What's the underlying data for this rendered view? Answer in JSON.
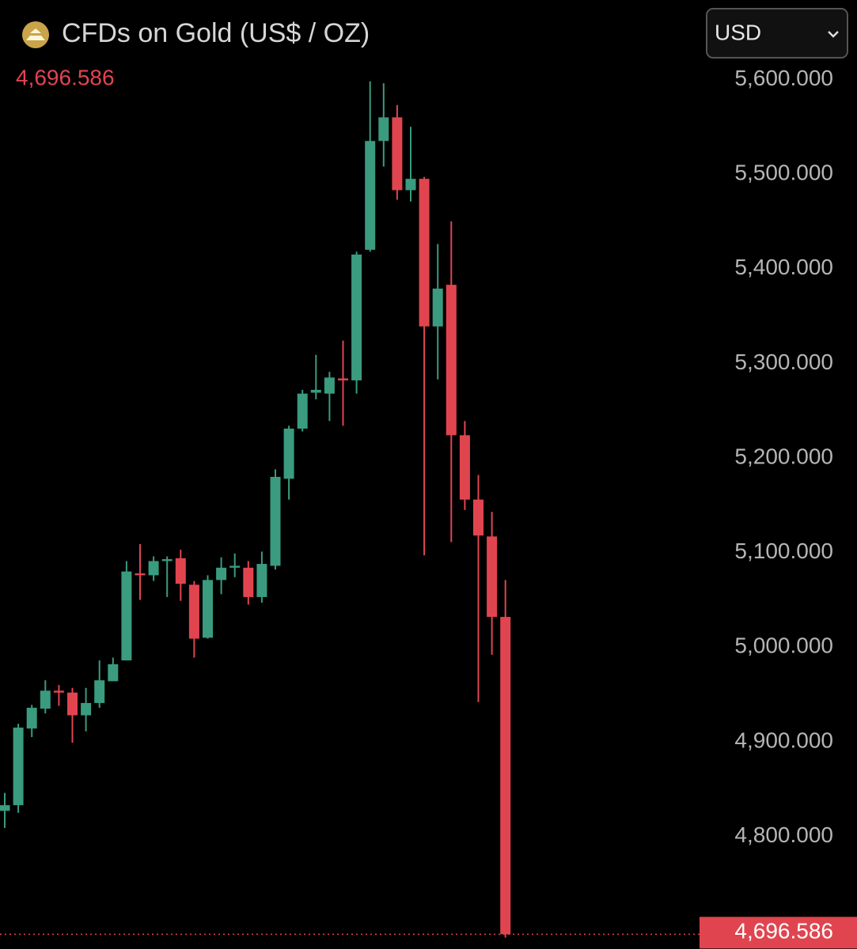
{
  "chart_data": {
    "type": "candlestick",
    "title": "CFDs on Gold (US$ / OZ)",
    "currency": "USD",
    "current_price": {
      "value": 4696.586,
      "label": "4,696.586"
    },
    "up_color": "#3a9b7f",
    "down_color": "#e0454f",
    "ylim": [
      4681,
      5684
    ],
    "yticks": [
      {
        "value": 4800,
        "label": "4,800.000"
      },
      {
        "value": 4900,
        "label": "4,900.000"
      },
      {
        "value": 5000,
        "label": "5,000.000"
      },
      {
        "value": 5100,
        "label": "5,100.000"
      },
      {
        "value": 5200,
        "label": "5,200.000"
      },
      {
        "value": 5300,
        "label": "5,300.000"
      },
      {
        "value": 5400,
        "label": "5,400.000"
      },
      {
        "value": 5500,
        "label": "5,500.000"
      },
      {
        "value": 5600,
        "label": "5,600.000"
      }
    ],
    "open": [
      4827,
      4833,
      4914,
      4935,
      4954,
      4952,
      4928,
      4941,
      4964,
      4986,
      5078,
      5076,
      5091,
      5094,
      5066,
      5010,
      5071,
      5084,
      5084,
      5053,
      5086,
      5178,
      5231,
      5269,
      5268,
      5284,
      5282,
      5420,
      5535,
      5560,
      5483,
      5495,
      5339,
      5383,
      5224,
      5156,
      5117,
      5032
    ],
    "high": [
      4846,
      4919,
      4939,
      4965,
      4960,
      4957,
      4957,
      4986,
      4989,
      5091,
      5109,
      5096,
      5096,
      5103,
      5070,
      5076,
      5095,
      5099,
      5091,
      5101,
      5188,
      5234,
      5272,
      5309,
      5291,
      5324,
      5418,
      5598,
      5596,
      5573,
      5550,
      5497,
      5426,
      5450,
      5239,
      5182,
      5143,
      5071
    ],
    "low": [
      4809,
      4825,
      4905,
      4930,
      4938,
      4899,
      4911,
      4936,
      4964,
      4986,
      5050,
      5070,
      5053,
      5049,
      4989,
      5009,
      5056,
      5074,
      5045,
      5047,
      5082,
      5156,
      5228,
      5262,
      5239,
      5234,
      5268,
      5418,
      5508,
      5473,
      5471,
      5097,
      5283,
      5111,
      5145,
      4942,
      4992,
      4693
    ],
    "close": [
      4833,
      4915,
      4936,
      4954,
      4952,
      4928,
      4941,
      4965,
      4982,
      5080,
      5076,
      5091,
      5093,
      5067,
      5009,
      5071,
      5084,
      5086,
      5053,
      5088,
      5180,
      5231,
      5268,
      5272,
      5285,
      5282,
      5415,
      5535,
      5560,
      5483,
      5495,
      5339,
      5379,
      5224,
      5156,
      5118,
      5032,
      4696.586
    ]
  }
}
